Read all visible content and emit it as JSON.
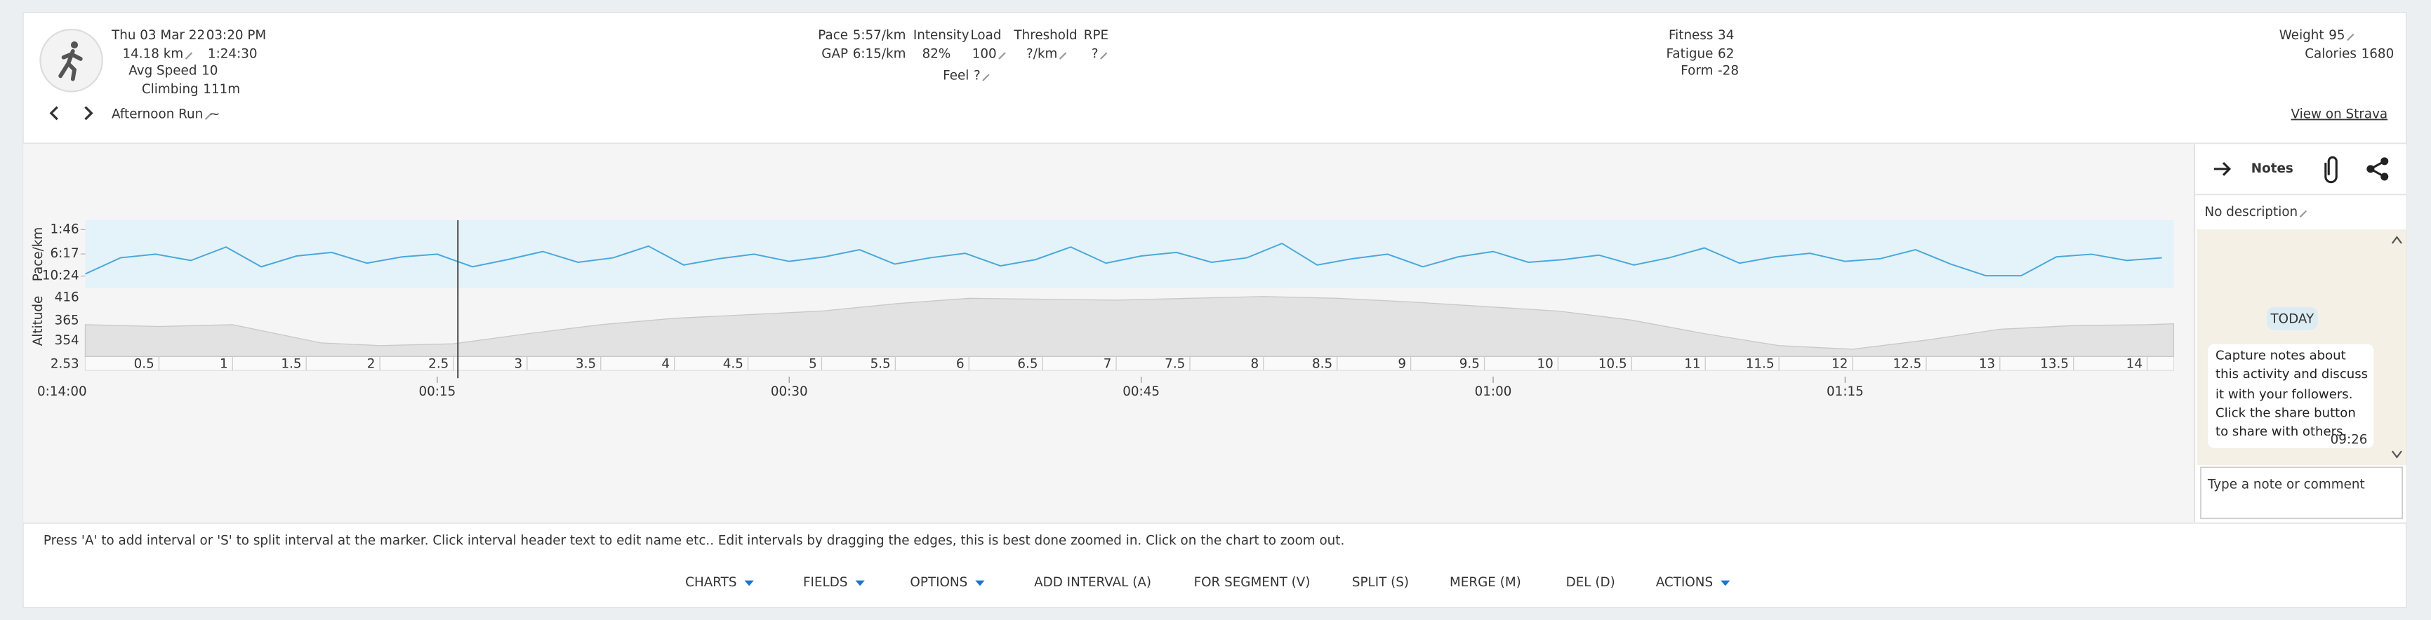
{
  "header": {
    "date": "Thu 03 Mar 22",
    "time": "03:20 PM",
    "distance": "14.18 km",
    "duration": "1:24:30",
    "avg_speed_label": "Avg Speed",
    "avg_speed": "10",
    "climbing_label": "Climbing",
    "climbing": "111m",
    "activity_name": "Afternoon Run",
    "activity_suffix": "~"
  },
  "stats": {
    "pace_label": "Pace",
    "pace": "5:57/km",
    "gap_label": "GAP",
    "gap": "6:15/km",
    "intensity_label": "Intensity",
    "intensity": "82%",
    "load_label": "Load",
    "load": "100",
    "threshold_label": "Threshold",
    "threshold": "?/km",
    "rpe_label": "RPE",
    "rpe": "?",
    "feel_label": "Feel",
    "feel": "?"
  },
  "fitness": {
    "fitness_label": "Fitness",
    "fitness": "34",
    "fatigue_label": "Fatigue",
    "fatigue": "62",
    "form_label": "Form",
    "form": "-28"
  },
  "body": {
    "weight_label": "Weight",
    "weight": "95",
    "calories_label": "Calories",
    "calories": "1680"
  },
  "strava_link": "View on Strava",
  "chart_data": [
    {
      "type": "line",
      "ylabel": "Pace/km",
      "color": "#4aa8d8",
      "marker_time": "0:14:00",
      "x": [
        0,
        1.5,
        3,
        4.5,
        6,
        7.5,
        9,
        10.5,
        12,
        13.5,
        15,
        16.5,
        18,
        19.5,
        21,
        22.5,
        24,
        25.5,
        27,
        28.5,
        30,
        31.5,
        33,
        34.5,
        36,
        37.5,
        39,
        40.5,
        42,
        43.5,
        45,
        46.5,
        48,
        49.5,
        51,
        52.5,
        54,
        55.5,
        57,
        58.5,
        60,
        61.5,
        63,
        64.5,
        66,
        67.5,
        69,
        70.5,
        72,
        73.5,
        75,
        76.5,
        78,
        79.5,
        81,
        82.5,
        84,
        85.5,
        87,
        88.5
      ],
      "values": [
        600,
        420,
        380,
        450,
        300,
        520,
        400,
        360,
        480,
        410,
        380,
        520,
        440,
        350,
        470,
        420,
        290,
        500,
        430,
        380,
        460,
        410,
        330,
        490,
        420,
        370,
        510,
        440,
        300,
        480,
        400,
        360,
        470,
        420,
        260,
        500,
        430,
        380,
        520,
        410,
        350,
        470,
        440,
        390,
        500,
        420,
        310,
        480,
        410,
        370,
        460,
        430,
        330,
        490,
        620,
        620,
        410,
        380,
        450,
        420
      ],
      "xlim": [
        0,
        89
      ],
      "ylim": [
        0,
        760
      ],
      "yticks": [
        {
          "value": 106,
          "label": "1:46"
        },
        {
          "value": 377,
          "label": "6:17"
        },
        {
          "value": 624,
          "label": "10:24"
        }
      ],
      "xticks": [
        {
          "value": 15,
          "label": "00:15"
        },
        {
          "value": 30,
          "label": "00:30"
        },
        {
          "value": 45,
          "label": "00:45"
        },
        {
          "value": 60,
          "label": "01:00"
        },
        {
          "value": 75,
          "label": "01:15"
        }
      ]
    },
    {
      "type": "area",
      "ylabel": "Altitude",
      "color": "#e2e2e2",
      "side_labels": [
        "416",
        "365",
        "354"
      ],
      "marker_distance": 2.53,
      "x": [
        0,
        0.5,
        1,
        1.3,
        1.6,
        2,
        2.5,
        3,
        3.5,
        4,
        5,
        5.5,
        6,
        7,
        7.5,
        8,
        8.5,
        9,
        10,
        10.5,
        11,
        11.5,
        12,
        12.5,
        13,
        13.5,
        14,
        14.18
      ],
      "values": [
        385,
        383,
        385,
        375,
        365,
        362,
        364,
        375,
        385,
        392,
        400,
        408,
        414,
        412,
        414,
        416,
        414,
        410,
        400,
        390,
        375,
        362,
        358,
        368,
        380,
        384,
        385,
        386
      ],
      "xlim": [
        0,
        14.18
      ],
      "ylim": [
        350,
        425
      ],
      "xticks": [
        0.5,
        1,
        1.5,
        2,
        2.5,
        3,
        3.5,
        4,
        4.5,
        5,
        5.5,
        6,
        6.5,
        7,
        7.5,
        8,
        8.5,
        9,
        9.5,
        10,
        10.5,
        11,
        11.5,
        12,
        12.5,
        13,
        13.5,
        14
      ]
    }
  ],
  "notes": {
    "title": "Notes",
    "description": "No description",
    "day": "TODAY",
    "message": "Capture notes about this activity and discuss it with your followers. Click the share button to share with others.",
    "message_time": "09:26",
    "placeholder": "Type a note or comment"
  },
  "footer": {
    "hint": "Press 'A' to add interval or 'S' to split interval at the marker. Click interval header text to edit name etc.. Edit intervals by dragging the edges, this is best done zoomed in. Click on the chart to zoom out.",
    "buttons": [
      "CHARTS",
      "FIELDS",
      "OPTIONS",
      "ADD INTERVAL (A)",
      "FOR SEGMENT (V)",
      "SPLIT (S)",
      "MERGE (M)",
      "DEL (D)",
      "ACTIONS"
    ]
  }
}
